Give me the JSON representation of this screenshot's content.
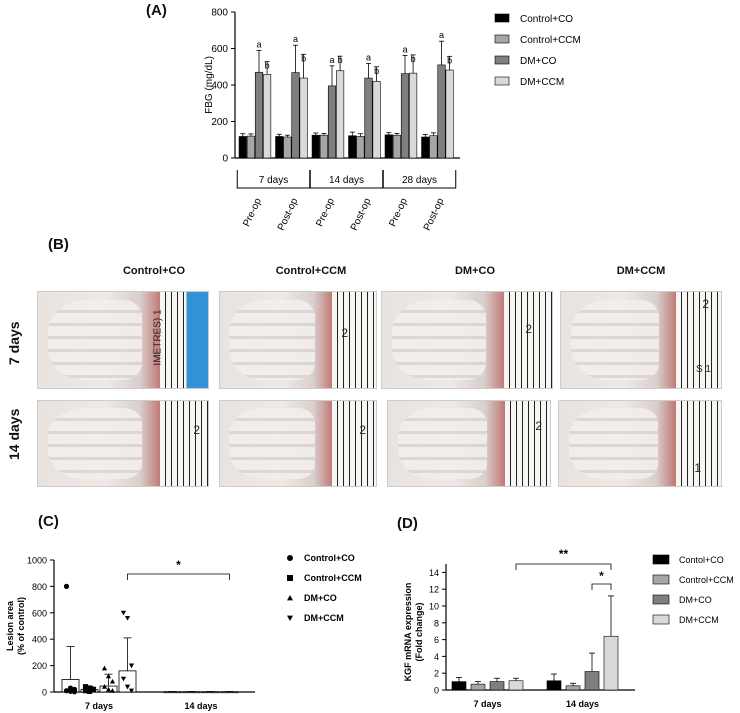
{
  "panels": {
    "A": "(A)",
    "B": "(B)",
    "C": "(C)",
    "D": "(D)"
  },
  "photo_grid": {
    "columns": [
      "Control+CO",
      "Control+CCM",
      "DM+CO",
      "DM+CCM"
    ],
    "rows": [
      "7 days",
      "14 days"
    ],
    "ruler_marks": [
      [
        "1",
        "2",
        "2",
        "2"
      ],
      [
        "2",
        "2",
        "2",
        "1"
      ]
    ],
    "ruler_text": [
      "IMETRES) 1",
      "S 1"
    ]
  },
  "chart_data": [
    {
      "type": "bar",
      "ylabel": "FBG (mg/dL)",
      "ylim": [
        0,
        800
      ],
      "yticks": [
        "0",
        "200",
        "400",
        "600",
        "800"
      ],
      "groups": [
        "7 days",
        "14 days",
        "28 days"
      ],
      "categories": [
        "Pre-op",
        "Post-op",
        "Pre-op",
        "Post-op",
        "Pre-op",
        "Post-op"
      ],
      "series": [
        {
          "name": "Control+CO",
          "color": "#000000",
          "values": [
            118,
            118,
            125,
            122,
            127,
            115
          ],
          "err": [
            15,
            12,
            12,
            20,
            12,
            14
          ]
        },
        {
          "name": "Control+CCM",
          "color": "#a6a6a6",
          "values": [
            120,
            115,
            125,
            118,
            125,
            122
          ],
          "err": [
            12,
            10,
            10,
            15,
            10,
            16
          ]
        },
        {
          "name": "DM+CO",
          "color": "#7f7f7f",
          "values": [
            470,
            468,
            395,
            438,
            462,
            510
          ],
          "err": [
            120,
            150,
            110,
            80,
            100,
            130
          ]
        },
        {
          "name": "DM+CCM",
          "color": "#d9d9d9",
          "values": [
            458,
            438,
            478,
            420,
            465,
            482
          ],
          "err": [
            70,
            130,
            80,
            80,
            100,
            75
          ]
        }
      ],
      "letters": [
        "a",
        "b",
        "a",
        "b",
        "a",
        "b",
        "a",
        "b",
        "a",
        "b",
        "a",
        "b"
      ],
      "legend": "right"
    },
    {
      "type": "bar",
      "ylabel": "Lesion area\n(% of control)",
      "ylabel_lines": [
        "Lesion area",
        "(% of control)"
      ],
      "ylim": [
        0,
        1000
      ],
      "yticks": [
        "0",
        "200",
        "400",
        "600",
        "800",
        "1000"
      ],
      "categories": [
        "7 days",
        "14 days"
      ],
      "series": [
        {
          "name": "Control+CO",
          "marker": "circle",
          "values": [
            95,
            2
          ],
          "err": [
            250,
            2
          ]
        },
        {
          "name": "Control+CCM",
          "marker": "square",
          "values": [
            18,
            2
          ],
          "err": [
            25,
            2
          ]
        },
        {
          "name": "DM+CO",
          "marker": "triangle-up",
          "values": [
            45,
            2
          ],
          "err": [
            90,
            2
          ]
        },
        {
          "name": "DM+CCM",
          "marker": "triangle-down",
          "values": [
            160,
            2
          ],
          "err": [
            250,
            2
          ]
        }
      ],
      "points_7d": [
        [
          800,
          30,
          20,
          10,
          5,
          2
        ],
        [
          40,
          30,
          20,
          10,
          5
        ],
        [
          180,
          120,
          80,
          40,
          20,
          10
        ],
        [
          600,
          560,
          200,
          100,
          40,
          10
        ]
      ],
      "significance": [
        {
          "label": "*",
          "from": "7 days DM+CCM",
          "to": "14 days DM+CCM"
        }
      ],
      "legend": "right"
    },
    {
      "type": "bar",
      "ylabel": "KGF mRNA expression\n(Fold change)",
      "ylabel_lines": [
        "KGF mRNA expression",
        "(Fold change)"
      ],
      "ylim": [
        0,
        15
      ],
      "yticks": [
        "0",
        "2",
        "4",
        "6",
        "8",
        "10",
        "12",
        "14"
      ],
      "categories": [
        "7 days",
        "14 days"
      ],
      "series": [
        {
          "name": "Contol+CO",
          "color": "#000000",
          "values": [
            1.0,
            1.1
          ],
          "err": [
            0.5,
            0.8
          ]
        },
        {
          "name": "Control+CCM",
          "color": "#a6a6a6",
          "values": [
            0.7,
            0.5
          ],
          "err": [
            0.3,
            0.3
          ]
        },
        {
          "name": "DM+CO",
          "color": "#7f7f7f",
          "values": [
            1.0,
            2.2
          ],
          "err": [
            0.4,
            2.2
          ]
        },
        {
          "name": "DM+CCM",
          "color": "#d9d9d9",
          "values": [
            1.1,
            6.4
          ],
          "err": [
            0.3,
            4.8
          ]
        }
      ],
      "significance": [
        {
          "label": "**",
          "from": "7 days DM+CCM",
          "to": "14 days DM+CCM"
        },
        {
          "label": "*",
          "from": "14 days DM+CO",
          "to": "14 days DM+CCM"
        }
      ],
      "legend": "right"
    }
  ]
}
